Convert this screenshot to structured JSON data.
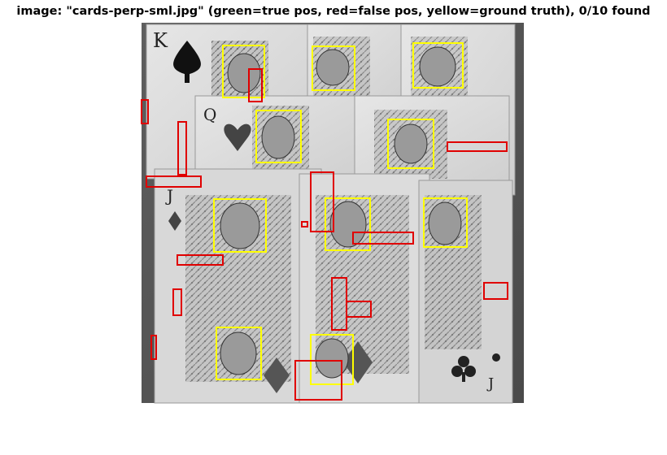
{
  "figure": {
    "title": "image: \"cards-perp-sml.jpg\" (green=true pos, red=false pos, yellow=ground truth), 0/10 found",
    "legend": {
      "true_positive": "green",
      "false_positive": "red",
      "ground_truth": "yellow"
    },
    "found_count": 0,
    "total_faces": 10,
    "colors": {
      "true_positive": "#00ff00",
      "false_positive": "#e00000",
      "ground_truth": "#ffff00"
    },
    "photo_description_icon": "playing-cards-photo"
  },
  "ground_truth_boxes_count": 10,
  "false_positive_boxes_count": 17
}
